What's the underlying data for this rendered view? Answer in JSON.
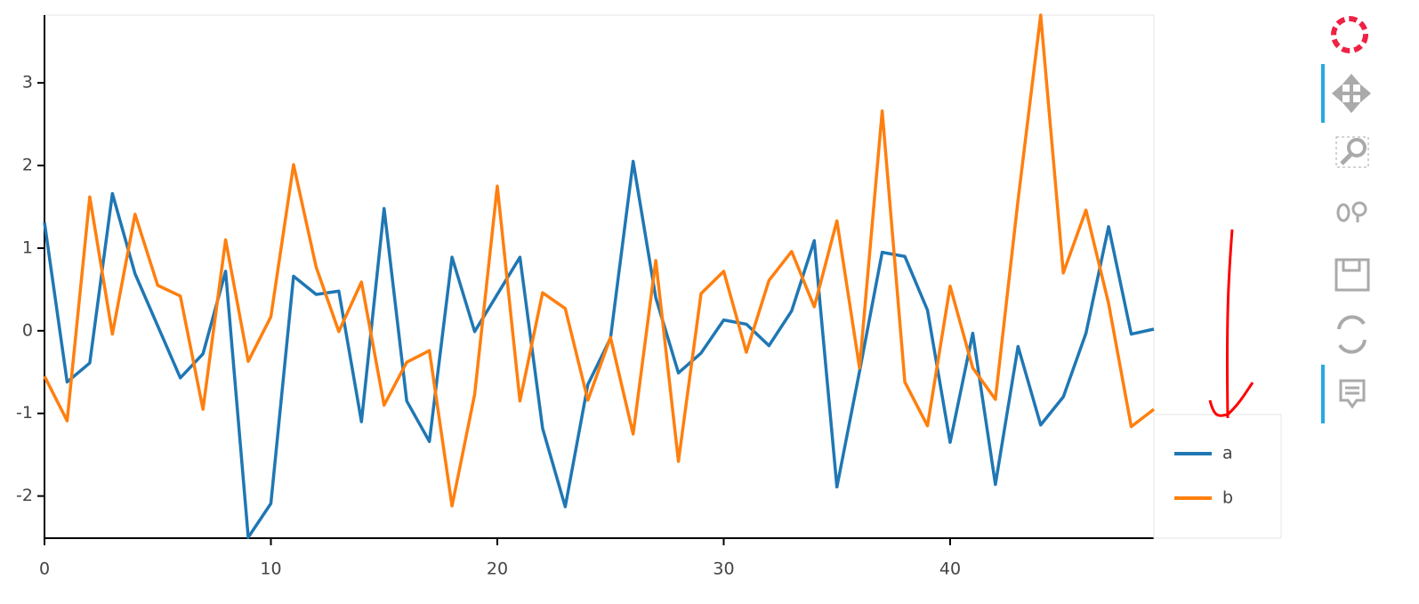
{
  "chart_data": {
    "type": "line",
    "x": [
      0,
      1,
      2,
      3,
      4,
      5,
      6,
      7,
      8,
      9,
      10,
      11,
      12,
      13,
      14,
      15,
      16,
      17,
      18,
      19,
      20,
      21,
      22,
      23,
      24,
      25,
      26,
      27,
      28,
      29,
      30,
      31,
      32,
      33,
      34,
      35,
      36,
      37,
      38,
      39,
      40,
      41,
      42,
      43,
      44,
      45,
      46,
      47,
      48,
      49
    ],
    "series": [
      {
        "name": "a",
        "color": "#1f77b4",
        "values": [
          1.31,
          -0.62,
          -0.39,
          1.66,
          0.69,
          0.06,
          -0.57,
          -0.28,
          0.72,
          -2.5,
          -2.09,
          0.66,
          0.44,
          0.48,
          -1.1,
          1.48,
          -0.85,
          -1.34,
          0.89,
          -0.01,
          0.44,
          0.89,
          -1.18,
          -2.13,
          -0.65,
          -0.09,
          2.05,
          0.4,
          -0.51,
          -0.27,
          0.13,
          0.08,
          -0.18,
          0.24,
          1.09,
          -1.89,
          -0.49,
          0.95,
          0.9,
          0.25,
          -1.35,
          -0.03,
          -1.86,
          -0.19,
          -1.14,
          -0.8,
          -0.03,
          1.26,
          -0.04,
          0.02
        ]
      },
      {
        "name": "b",
        "color": "#ff7f0e",
        "values": [
          -0.55,
          -1.09,
          1.62,
          -0.04,
          1.41,
          0.55,
          0.42,
          -0.95,
          1.1,
          -0.37,
          0.17,
          2.01,
          0.77,
          -0.01,
          0.59,
          -0.9,
          -0.38,
          -0.24,
          -2.12,
          -0.77,
          1.75,
          -0.85,
          0.46,
          0.27,
          -0.84,
          -0.08,
          -1.25,
          0.85,
          -1.58,
          0.45,
          0.72,
          -0.26,
          0.61,
          0.96,
          0.29,
          1.33,
          -0.45,
          2.66,
          -0.62,
          -1.15,
          0.54,
          -0.45,
          -0.83,
          1.58,
          3.82,
          0.7,
          1.46,
          0.33,
          -1.16,
          -0.95
        ]
      }
    ],
    "xlim": [
      0,
      49
    ],
    "ylim": [
      -2.51,
      3.82
    ],
    "xticks": [
      0,
      10,
      20,
      30,
      40
    ],
    "yticks": [
      -2,
      -1,
      0,
      1,
      2,
      3
    ]
  }
}
